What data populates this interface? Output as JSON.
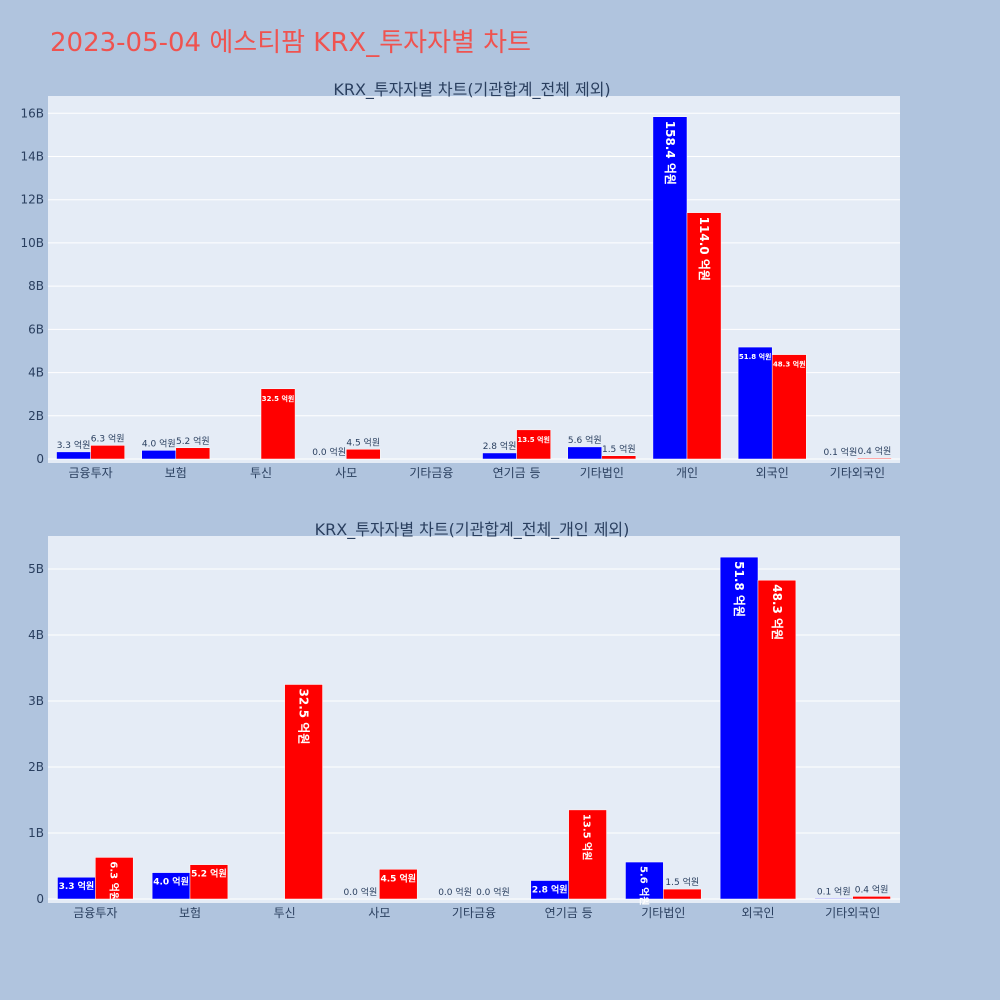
{
  "page": {
    "title": "2023-05-04 에스티팜 KRX_투자자별 차트"
  },
  "chart_data": [
    {
      "type": "bar",
      "title": "KRX_투자자별 차트(기관합계_전체 제외)",
      "categories": [
        "금융투자",
        "보험",
        "투신",
        "사모",
        "기타금융",
        "연기금 등",
        "기타법인",
        "개인",
        "외국인",
        "기타외국인"
      ],
      "series": [
        {
          "color": "#0000ff",
          "values": [
            330000000,
            400000000,
            0,
            0,
            0,
            280000000,
            560000000,
            15840000000,
            5180000000,
            10000000
          ],
          "labels": [
            "3.3 억원",
            "4.0 억원",
            "",
            "0.0 억원",
            "",
            "2.8 억원",
            "5.6 억원",
            "158.4 억원",
            "51.8 억원",
            "0.1 억원"
          ]
        },
        {
          "color": "#ff0000",
          "values": [
            630000000,
            520000000,
            3250000000,
            450000000,
            0,
            1350000000,
            150000000,
            11400000000,
            4830000000,
            40000000
          ],
          "labels": [
            "6.3 억원",
            "5.2 억원",
            "32.5 억원",
            "4.5 억원",
            "",
            "13.5 억원",
            "1.5 억원",
            "114.0 억원",
            "48.3 억원",
            "0.4 억원"
          ]
        }
      ],
      "ylim": [
        0,
        16800000000
      ],
      "yticks": [
        0,
        2000000000,
        4000000000,
        6000000000,
        8000000000,
        10000000000,
        12000000000,
        14000000000,
        16000000000
      ],
      "ytick_labels": [
        "0",
        "2B",
        "4B",
        "6B",
        "8B",
        "10B",
        "12B",
        "14B",
        "16B"
      ],
      "grid": true,
      "legend": "none"
    },
    {
      "type": "bar",
      "title": "KRX_투자자별 차트(기관합계_전체_개인 제외)",
      "categories": [
        "금융투자",
        "보험",
        "투신",
        "사모",
        "기타금융",
        "연기금 등",
        "기타법인",
        "외국인",
        "기타외국인"
      ],
      "series": [
        {
          "color": "#0000ff",
          "values": [
            330000000,
            400000000,
            0,
            0,
            0,
            280000000,
            560000000,
            5180000000,
            10000000
          ],
          "labels": [
            "3.3 억원",
            "4.0 억원",
            "",
            "0.0 억원",
            "0.0 억원",
            "2.8 억원",
            "5.6 억원",
            "51.8 억원",
            "0.1 억원"
          ]
        },
        {
          "color": "#ff0000",
          "values": [
            630000000,
            520000000,
            3250000000,
            450000000,
            0,
            1350000000,
            150000000,
            4830000000,
            40000000
          ],
          "labels": [
            "6.3 억원",
            "5.2 억원",
            "32.5 억원",
            "4.5 억원",
            "0.0 억원",
            "13.5 억원",
            "1.5 억원",
            "48.3 억원",
            "0.4 억원"
          ]
        }
      ],
      "ylim": [
        0,
        5500000000
      ],
      "yticks": [
        0,
        1000000000,
        2000000000,
        3000000000,
        4000000000,
        5000000000
      ],
      "ytick_labels": [
        "0",
        "1B",
        "2B",
        "3B",
        "4B",
        "5B"
      ],
      "grid": true,
      "legend": "none"
    }
  ]
}
